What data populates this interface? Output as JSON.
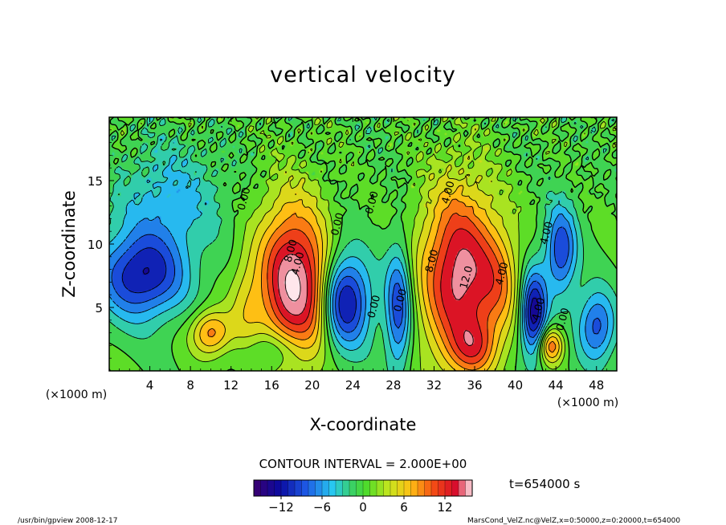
{
  "chart_data": {
    "type": "heatmap",
    "title": "vertical velocity",
    "xlabel": "X-coordinate",
    "ylabel": "Z-coordinate",
    "x_unit_left": "(×1000 m)",
    "x_unit_right": "(×1000 m)",
    "xlim": [
      0,
      50
    ],
    "ylim": [
      0,
      20
    ],
    "x_ticks": [
      4,
      8,
      12,
      16,
      20,
      24,
      28,
      32,
      36,
      40,
      44,
      48
    ],
    "y_ticks": [
      5,
      10,
      15
    ],
    "contour_interval_text": "CONTOUR INTERVAL = 2.000E+00",
    "time_text": "t=654000 s",
    "colorbar": {
      "range": [
        -16,
        16
      ],
      "ticks": [
        -12,
        -6,
        0,
        6,
        12
      ],
      "tick_labels": [
        "−12",
        "−6",
        "0",
        "6",
        "12"
      ]
    },
    "contour_labels": [
      {
        "text": "0.00",
        "x": 13.6,
        "y": 13.5
      },
      {
        "text": "0.00",
        "x": 22.8,
        "y": 11.5
      },
      {
        "text": "0.00",
        "x": 26.2,
        "y": 13.2
      },
      {
        "text": "4.00",
        "x": 18.9,
        "y": 8.4
      },
      {
        "text": "8.00",
        "x": 18.2,
        "y": 9.4
      },
      {
        "text": "0.00",
        "x": 26.4,
        "y": 5.0
      },
      {
        "text": "0.00",
        "x": 29.0,
        "y": 5.5
      },
      {
        "text": "4.00",
        "x": 33.7,
        "y": 14.0
      },
      {
        "text": "8.00",
        "x": 32.1,
        "y": 8.6
      },
      {
        "text": "12.0",
        "x": 35.5,
        "y": 7.3
      },
      {
        "text": "4.00",
        "x": 39.0,
        "y": 7.6
      },
      {
        "text": "4.00",
        "x": 43.4,
        "y": 10.8
      },
      {
        "text": "4.00",
        "x": 42.6,
        "y": 4.8
      },
      {
        "text": "0.00",
        "x": 45.0,
        "y": 4.0
      }
    ],
    "features": [
      {
        "x": 18.0,
        "z": 7.0,
        "value": 16,
        "sx": 2.3,
        "sz": 4.5
      },
      {
        "x": 34.5,
        "z": 7.5,
        "value": 15,
        "sx": 2.7,
        "sz": 5.0
      },
      {
        "x": 10.0,
        "z": 3.0,
        "value": 9,
        "sx": 1.4,
        "sz": 1.3
      },
      {
        "x": 23.2,
        "z": 5.5,
        "value": -13,
        "sx": 1.8,
        "sz": 2.6
      },
      {
        "x": 28.5,
        "z": 5.0,
        "value": -10,
        "sx": 0.9,
        "sz": 3.5
      },
      {
        "x": 3.2,
        "z": 7.5,
        "value": -12,
        "sx": 3.0,
        "sz": 2.4
      },
      {
        "x": 6.0,
        "z": 13.5,
        "value": -5,
        "sx": 3.5,
        "sz": 3.0
      },
      {
        "x": 41.8,
        "z": 4.5,
        "value": -14,
        "sx": 0.9,
        "sz": 2.4
      },
      {
        "x": 44.5,
        "z": 9.5,
        "value": -10,
        "sx": 1.1,
        "sz": 2.5
      },
      {
        "x": 48.0,
        "z": 3.5,
        "value": -9,
        "sx": 1.3,
        "sz": 2.0
      },
      {
        "x": 43.5,
        "z": 2.0,
        "value": 10,
        "sx": 0.9,
        "sz": 1.0
      },
      {
        "x": 13.5,
        "z": 5.0,
        "value": 4,
        "sx": 1.2,
        "sz": 3.0
      },
      {
        "x": 20.5,
        "z": 6.0,
        "value": 4,
        "sx": 1.2,
        "sz": 3.0
      },
      {
        "x": 38.5,
        "z": 7.0,
        "value": 5,
        "sx": 1.5,
        "sz": 3.0
      },
      {
        "x": 16.0,
        "z": 1.5,
        "value": -5,
        "sx": 2.0,
        "sz": 1.2
      },
      {
        "x": 36.0,
        "z": 1.8,
        "value": 6,
        "sx": 1.6,
        "sz": 1.5
      }
    ]
  },
  "footer": {
    "left": "/usr/bin/gpview   2008-12-17",
    "right": "MarsCond_VelZ.nc@VelZ,x=0:50000,z=0:20000,t=654000"
  }
}
